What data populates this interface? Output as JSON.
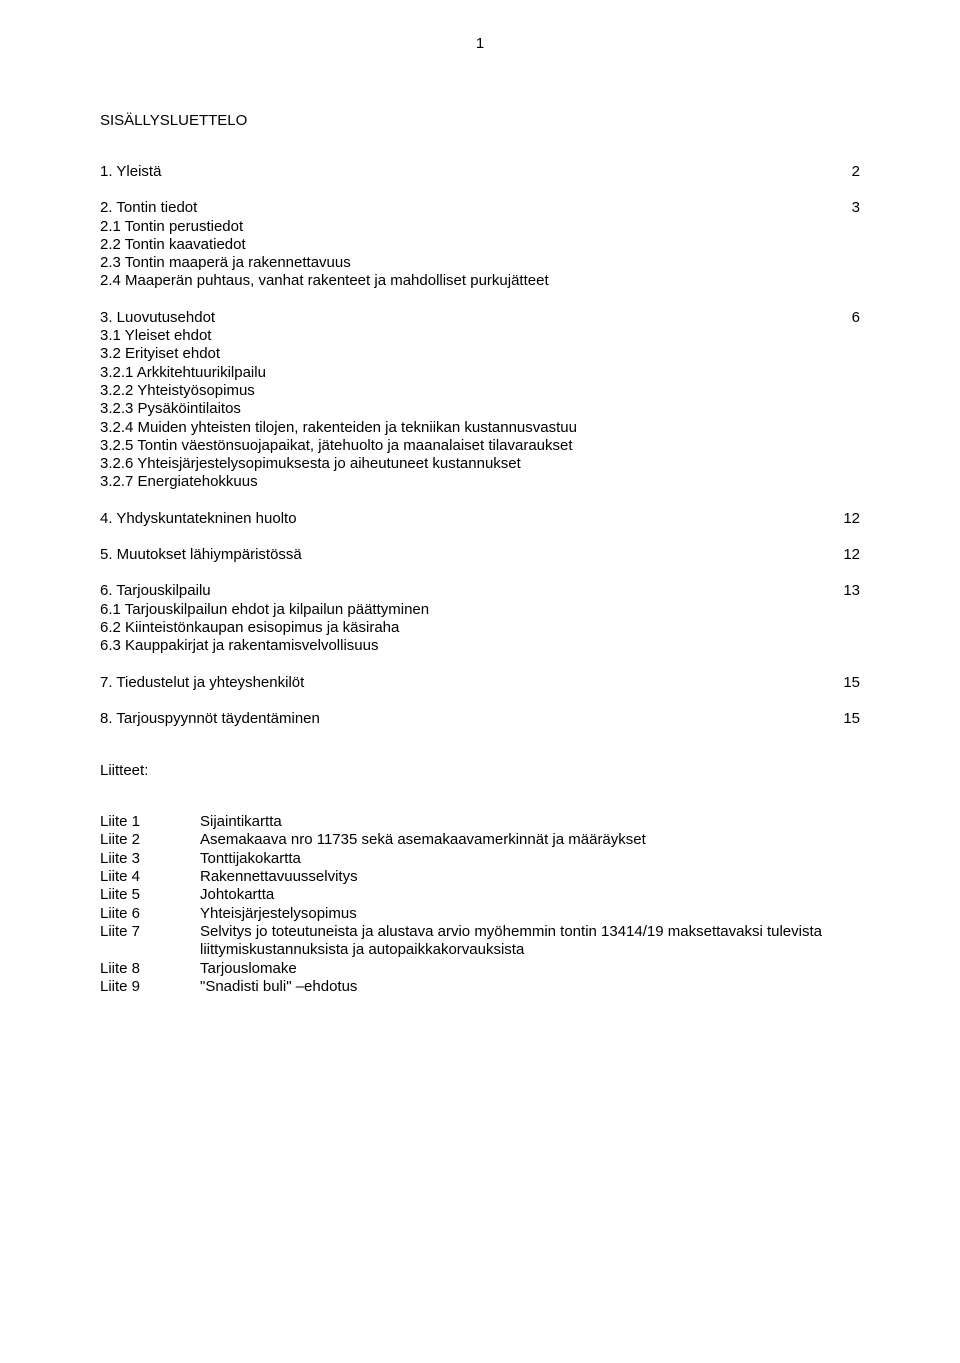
{
  "page_number": "1",
  "title": "SISÄLLYSLUETTELO",
  "sections": [
    {
      "head": "1. Yleistä",
      "page": "2",
      "subs": []
    },
    {
      "head": "2. Tontin tiedot",
      "page": "3",
      "subs": [
        "2.1 Tontin perustiedot",
        "2.2 Tontin kaavatiedot",
        "2.3 Tontin maaperä ja rakennettavuus",
        "2.4 Maaperän puhtaus, vanhat rakenteet ja mahdolliset purkujätteet"
      ]
    },
    {
      "head": "3. Luovutusehdot",
      "page": "6",
      "subs": [
        "3.1 Yleiset ehdot",
        "3.2 Erityiset ehdot",
        "3.2.1 Arkkitehtuurikilpailu",
        "3.2.2 Yhteistyösopimus",
        "3.2.3 Pysäköintilaitos",
        "3.2.4 Muiden yhteisten tilojen, rakenteiden ja tekniikan kustannusvastuu",
        "3.2.5 Tontin väestönsuojapaikat, jätehuolto ja maanalaiset tilavaraukset",
        "3.2.6 Yhteisjärjestelysopimuksesta jo aiheutuneet kustannukset",
        "3.2.7 Energiatehokkuus"
      ]
    },
    {
      "head": "4. Yhdyskuntatekninen huolto",
      "page": "12",
      "subs": []
    },
    {
      "head": "5. Muutokset lähiympäristössä",
      "page": "12",
      "subs": []
    },
    {
      "head": "6. Tarjouskilpailu",
      "page": "13",
      "subs": [
        "6.1 Tarjouskilpailun ehdot ja kilpailun päättyminen",
        "6.2 Kiinteistönkaupan esisopimus ja käsiraha",
        "6.3 Kauppakirjat ja rakentamisvelvollisuus"
      ]
    },
    {
      "head": "7. Tiedustelut ja yhteyshenkilöt",
      "page": "15",
      "subs": []
    },
    {
      "head": "8. Tarjouspyynnöt täydentäminen",
      "page": "15",
      "subs": []
    }
  ],
  "liitteet_label": "Liitteet:",
  "liitteet": [
    {
      "label": "Liite 1",
      "text": "Sijaintikartta"
    },
    {
      "label": "Liite 2",
      "text": "Asemakaava nro 11735 sekä asemakaavamerkinnät ja määräykset"
    },
    {
      "label": "Liite 3",
      "text": "Tonttijakokartta"
    },
    {
      "label": "Liite 4",
      "text": "Rakennettavuusselvitys"
    },
    {
      "label": "Liite 5",
      "text": "Johtokartta"
    },
    {
      "label": "Liite 6",
      "text": "Yhteisjärjestelysopimus"
    },
    {
      "label": "Liite 7",
      "text": "Selvitys jo toteutuneista ja alustava arvio myöhemmin tontin 13414/19 maksettavaksi tulevista liittymiskustannuksista ja autopaikkakorvauksista"
    },
    {
      "label": "Liite 8",
      "text": "Tarjouslomake"
    },
    {
      "label": "Liite 9",
      "text": "\"Snadisti buli\" –ehdotus"
    }
  ]
}
